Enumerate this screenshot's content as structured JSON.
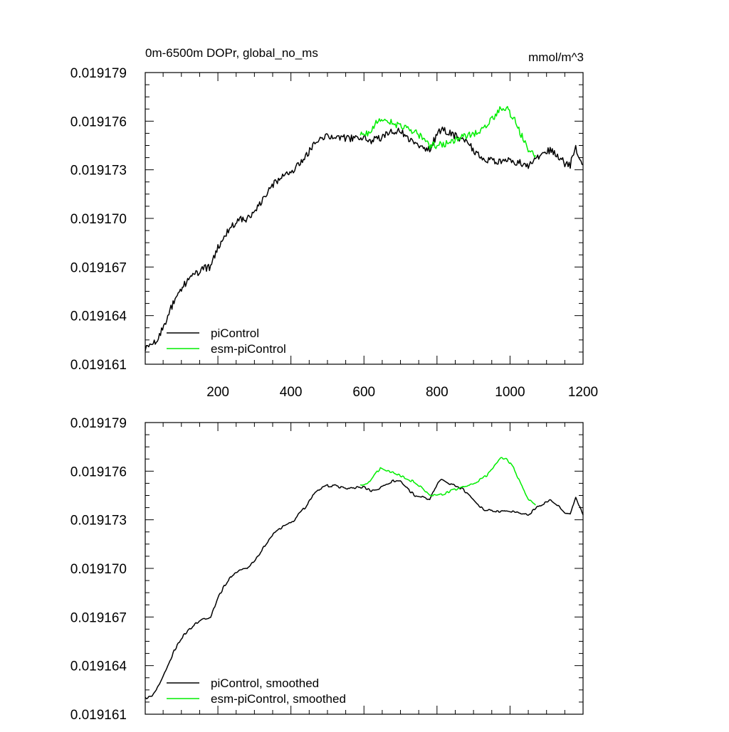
{
  "colors": {
    "piControl": "#000000",
    "esm_piControl": "#00ee00",
    "axis": "#000000",
    "background": "#ffffff"
  },
  "chart_data": [
    {
      "type": "line",
      "title": "0m-6500m DOPr, global_no_ms",
      "units": "mmol/m^3",
      "xlabel": "",
      "ylabel": "",
      "xlim": [
        1,
        1200
      ],
      "ylim": [
        0.019161,
        0.019179
      ],
      "xticks": [
        200,
        400,
        600,
        800,
        1000,
        1200
      ],
      "xtick_labels": [
        "200",
        "400",
        "600",
        "800",
        "1000",
        "1200"
      ],
      "yticks": [
        0.019161,
        0.019164,
        0.019167,
        0.01917,
        0.019173,
        0.019176,
        0.019179
      ],
      "ytick_labels": [
        "0.019161",
        "0.019164",
        "0.019167",
        "0.019170",
        "0.019173",
        "0.019176",
        "0.019179"
      ],
      "legend_position": "bottom-left",
      "series": [
        {
          "name": "piControl",
          "color": "#000000",
          "x": [
            1,
            20,
            40,
            60,
            80,
            100,
            120,
            140,
            160,
            180,
            200,
            220,
            240,
            260,
            280,
            300,
            320,
            340,
            360,
            380,
            400,
            410,
            420,
            440,
            460,
            480,
            500,
            520,
            540,
            560,
            580,
            600,
            620,
            640,
            660,
            680,
            700,
            720,
            740,
            760,
            780,
            800,
            815,
            830,
            850,
            870,
            890,
            910,
            930,
            950,
            970,
            990,
            1010,
            1030,
            1050,
            1070,
            1090,
            1110,
            1130,
            1150,
            1165,
            1180,
            1200
          ],
          "y": [
            0.019162,
            0.0191621,
            0.0191628,
            0.0191638,
            0.0191649,
            0.0191657,
            0.0191662,
            0.0191666,
            0.0191669,
            0.019167,
            0.0191682,
            0.019169,
            0.0191696,
            0.0191699,
            0.01917,
            0.0191705,
            0.0191711,
            0.0191718,
            0.0191723,
            0.0191726,
            0.0191728,
            0.019173,
            0.0191733,
            0.0191738,
            0.0191745,
            0.0191749,
            0.0191751,
            0.0191751,
            0.019175,
            0.0191749,
            0.019175,
            0.019175,
            0.0191748,
            0.0191749,
            0.0191752,
            0.0191754,
            0.0191754,
            0.0191749,
            0.0191745,
            0.0191744,
            0.0191742,
            0.0191752,
            0.0191755,
            0.0191753,
            0.0191751,
            0.0191749,
            0.0191745,
            0.019174,
            0.0191736,
            0.0191736,
            0.0191735,
            0.0191736,
            0.0191735,
            0.0191734,
            0.0191733,
            0.0191737,
            0.019174,
            0.0191742,
            0.0191739,
            0.0191734,
            0.0191733,
            0.0191744,
            0.0191733
          ]
        },
        {
          "name": "esm-piControl",
          "color": "#00ee00",
          "x": [
            590,
            610,
            630,
            645,
            660,
            680,
            700,
            720,
            740,
            760,
            780,
            800,
            820,
            840,
            860,
            880,
            900,
            920,
            940,
            960,
            975,
            990,
            1010,
            1030,
            1050,
            1070
          ],
          "y": [
            0.0191752,
            0.0191752,
            0.0191758,
            0.0191762,
            0.019176,
            0.0191759,
            0.0191757,
            0.0191755,
            0.0191753,
            0.019175,
            0.0191745,
            0.0191745,
            0.0191746,
            0.0191748,
            0.0191749,
            0.0191751,
            0.0191752,
            0.0191755,
            0.0191758,
            0.0191764,
            0.0191768,
            0.0191768,
            0.0191762,
            0.0191752,
            0.0191743,
            0.0191739
          ]
        }
      ]
    },
    {
      "type": "line",
      "title": "",
      "units": "",
      "xlabel": "",
      "ylabel": "",
      "xlim": [
        1,
        1200
      ],
      "ylim": [
        0.019161,
        0.019179
      ],
      "xticks": [
        200,
        400,
        600,
        800,
        1000,
        1200
      ],
      "xtick_labels": [],
      "yticks": [
        0.019161,
        0.019164,
        0.019167,
        0.01917,
        0.019173,
        0.019176,
        0.019179
      ],
      "ytick_labels": [
        "0.019161",
        "0.019164",
        "0.019167",
        "0.019170",
        "0.019173",
        "0.019176",
        "0.019179"
      ],
      "legend_position": "bottom-left",
      "series": [
        {
          "name": "piControl, smoothed",
          "color": "#000000",
          "x": [
            1,
            20,
            40,
            60,
            80,
            100,
            120,
            140,
            160,
            180,
            200,
            220,
            240,
            260,
            280,
            300,
            320,
            340,
            360,
            380,
            400,
            410,
            420,
            440,
            460,
            480,
            500,
            520,
            540,
            560,
            580,
            600,
            620,
            640,
            660,
            680,
            700,
            720,
            740,
            760,
            780,
            800,
            815,
            830,
            850,
            870,
            890,
            910,
            930,
            950,
            970,
            990,
            1010,
            1030,
            1050,
            1070,
            1090,
            1110,
            1130,
            1150,
            1165,
            1180,
            1200
          ],
          "y": [
            0.019162,
            0.0191621,
            0.0191628,
            0.0191638,
            0.0191649,
            0.0191657,
            0.0191662,
            0.0191666,
            0.0191669,
            0.019167,
            0.0191682,
            0.019169,
            0.0191696,
            0.0191699,
            0.01917,
            0.0191705,
            0.0191711,
            0.0191718,
            0.0191723,
            0.0191726,
            0.0191728,
            0.019173,
            0.0191733,
            0.0191738,
            0.0191745,
            0.0191749,
            0.0191751,
            0.0191751,
            0.019175,
            0.0191749,
            0.019175,
            0.019175,
            0.0191748,
            0.0191749,
            0.0191752,
            0.0191754,
            0.0191754,
            0.0191749,
            0.0191745,
            0.0191744,
            0.0191742,
            0.0191752,
            0.0191755,
            0.0191753,
            0.0191751,
            0.0191749,
            0.0191745,
            0.019174,
            0.0191736,
            0.0191736,
            0.0191735,
            0.0191736,
            0.0191735,
            0.0191734,
            0.0191733,
            0.0191737,
            0.019174,
            0.0191742,
            0.0191739,
            0.0191734,
            0.0191733,
            0.0191744,
            0.0191733
          ]
        },
        {
          "name": "esm-piControl, smoothed",
          "color": "#00ee00",
          "x": [
            590,
            610,
            630,
            645,
            660,
            680,
            700,
            720,
            740,
            760,
            780,
            800,
            820,
            840,
            860,
            880,
            900,
            920,
            940,
            960,
            975,
            990,
            1010,
            1030,
            1050,
            1070
          ],
          "y": [
            0.0191752,
            0.0191752,
            0.0191758,
            0.0191762,
            0.019176,
            0.0191759,
            0.0191757,
            0.0191755,
            0.0191753,
            0.019175,
            0.0191745,
            0.0191745,
            0.0191746,
            0.0191748,
            0.0191749,
            0.0191751,
            0.0191752,
            0.0191755,
            0.0191758,
            0.0191764,
            0.0191768,
            0.0191768,
            0.0191762,
            0.0191752,
            0.0191743,
            0.0191739
          ]
        }
      ]
    }
  ]
}
